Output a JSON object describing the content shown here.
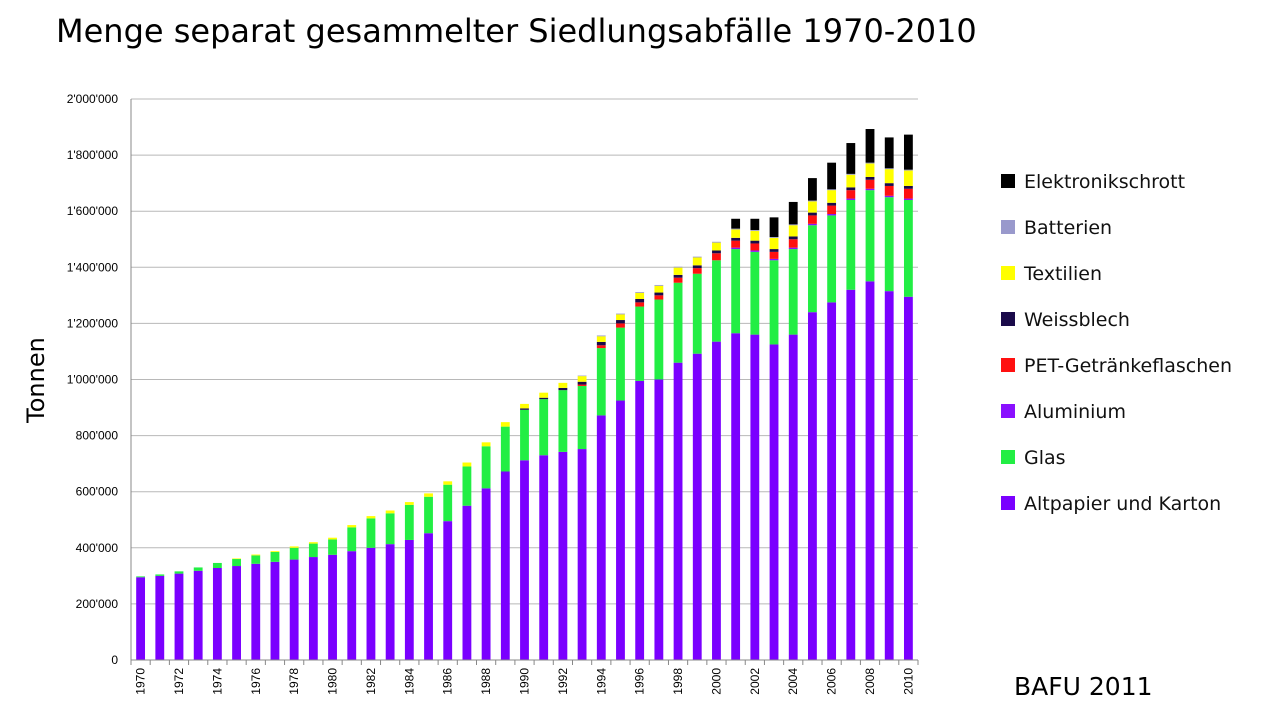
{
  "title": "Menge separat gesammelter Siedlungsabfälle 1970-2010",
  "source": "BAFU 2011",
  "chart_data": {
    "type": "bar",
    "stacked": true,
    "title": "Menge separat gesammelter Siedlungsabfälle 1970-2010",
    "xlabel": "",
    "ylabel": "Tonnen",
    "ylim": [
      0,
      2000000
    ],
    "yticks": [
      0,
      200000,
      400000,
      600000,
      800000,
      1000000,
      1200000,
      1400000,
      1600000,
      1800000,
      2000000
    ],
    "ytick_labels": [
      "0",
      "200'000",
      "400'000",
      "600'000",
      "800'000",
      "1'000'000",
      "1'200'000",
      "1'400'000",
      "1'600'000",
      "1'800'000",
      "2'000'000"
    ],
    "grid": true,
    "legend_position": "right",
    "categories": [
      "1970",
      "1971",
      "1972",
      "1973",
      "1974",
      "1975",
      "1976",
      "1977",
      "1978",
      "1979",
      "1980",
      "1981",
      "1982",
      "1983",
      "1984",
      "1985",
      "1986",
      "1987",
      "1988",
      "1989",
      "1990",
      "1991",
      "1992",
      "1993",
      "1994",
      "1995",
      "1996",
      "1997",
      "1998",
      "1999",
      "2000",
      "2001",
      "2002",
      "2003",
      "2004",
      "2005",
      "2006",
      "2007",
      "2008",
      "2009",
      "2010"
    ],
    "xtick_labels": [
      "1970",
      "1972",
      "1974",
      "1976",
      "1978",
      "1980",
      "1982",
      "1984",
      "1986",
      "1988",
      "1990",
      "1992",
      "1994",
      "1996",
      "1998",
      "2000",
      "2002",
      "2004",
      "2006",
      "2008",
      "2010"
    ],
    "series": [
      {
        "name": "Altpapier und Karton",
        "color": "#7a00ff",
        "values": [
          295000,
          300000,
          308000,
          318000,
          328000,
          335000,
          343000,
          350000,
          358000,
          367000,
          375000,
          388000,
          400000,
          413000,
          428000,
          452000,
          495000,
          550000,
          612000,
          672000,
          712000,
          730000,
          742000,
          752000,
          872000,
          925000,
          995000,
          1000000,
          1060000,
          1092000,
          1135000,
          1165000,
          1160000,
          1125000,
          1160000,
          1240000,
          1275000,
          1320000,
          1350000,
          1315000,
          1295000
        ]
      },
      {
        "name": "Glas",
        "color": "#22ee44",
        "values": [
          3000,
          5000,
          8000,
          12000,
          18000,
          25000,
          30000,
          35000,
          42000,
          48000,
          55000,
          85000,
          105000,
          110000,
          125000,
          130000,
          130000,
          140000,
          150000,
          160000,
          180000,
          200000,
          220000,
          225000,
          240000,
          260000,
          265000,
          285000,
          285000,
          285000,
          290000,
          300000,
          295000,
          300000,
          305000,
          310000,
          310000,
          320000,
          325000,
          335000,
          345000
        ]
      },
      {
        "name": "Aluminium",
        "color": "#8a10ff",
        "values": [
          0,
          0,
          0,
          0,
          0,
          0,
          0,
          0,
          0,
          0,
          0,
          0,
          0,
          0,
          0,
          0,
          0,
          0,
          0,
          0,
          0,
          0,
          0,
          0,
          0,
          0,
          0,
          0,
          0,
          0,
          0,
          5000,
          5000,
          5000,
          5000,
          5000,
          5000,
          5000,
          5000,
          5000,
          5000
        ]
      },
      {
        "name": "PET-Getränkeflaschen",
        "color": "#ff1010",
        "values": [
          0,
          0,
          0,
          0,
          0,
          0,
          0,
          0,
          0,
          0,
          0,
          0,
          0,
          0,
          0,
          0,
          0,
          0,
          0,
          0,
          0,
          0,
          0,
          5000,
          10000,
          15000,
          15000,
          15000,
          18000,
          20000,
          25000,
          25000,
          25000,
          25000,
          30000,
          30000,
          30000,
          30000,
          32000,
          35000,
          35000
        ]
      },
      {
        "name": "Weissblech",
        "color": "#1a0a4a",
        "values": [
          0,
          0,
          0,
          0,
          0,
          0,
          0,
          0,
          0,
          0,
          0,
          0,
          0,
          0,
          0,
          0,
          0,
          0,
          0,
          0,
          5000,
          5000,
          8000,
          10000,
          12000,
          12000,
          12000,
          10000,
          10000,
          10000,
          10000,
          10000,
          10000,
          10000,
          10000,
          10000,
          10000,
          10000,
          10000,
          10000,
          10000
        ]
      },
      {
        "name": "Textilien",
        "color": "#ffff00",
        "values": [
          0,
          0,
          0,
          0,
          0,
          2000,
          3000,
          3000,
          5000,
          5000,
          6000,
          8000,
          8000,
          10000,
          10000,
          12000,
          12000,
          14000,
          14000,
          16000,
          16000,
          18000,
          18000,
          20000,
          20000,
          20000,
          22000,
          24000,
          26000,
          28000,
          28000,
          30000,
          35000,
          40000,
          40000,
          40000,
          45000,
          45000,
          48000,
          50000,
          55000
        ]
      },
      {
        "name": "Batterien",
        "color": "#9999cc",
        "values": [
          0,
          0,
          0,
          0,
          0,
          0,
          0,
          0,
          0,
          0,
          0,
          0,
          0,
          0,
          0,
          0,
          0,
          0,
          0,
          0,
          0,
          0,
          0,
          2000,
          3000,
          3000,
          3000,
          3000,
          3000,
          3000,
          3000,
          3000,
          3000,
          3000,
          3000,
          3000,
          3000,
          3000,
          3000,
          3000,
          3000
        ]
      },
      {
        "name": "Elektronikschrott",
        "color": "#000000",
        "values": [
          0,
          0,
          0,
          0,
          0,
          0,
          0,
          0,
          0,
          0,
          0,
          0,
          0,
          0,
          0,
          0,
          0,
          0,
          0,
          0,
          0,
          0,
          0,
          0,
          0,
          0,
          0,
          0,
          0,
          0,
          0,
          35000,
          40000,
          70000,
          80000,
          80000,
          95000,
          110000,
          120000,
          110000,
          125000
        ]
      }
    ],
    "legend_order": [
      "Elektronikschrott",
      "Batterien",
      "Textilien",
      "Weissblech",
      "PET-Getränkeflaschen",
      "Aluminium",
      "Glas",
      "Altpapier und Karton"
    ]
  }
}
